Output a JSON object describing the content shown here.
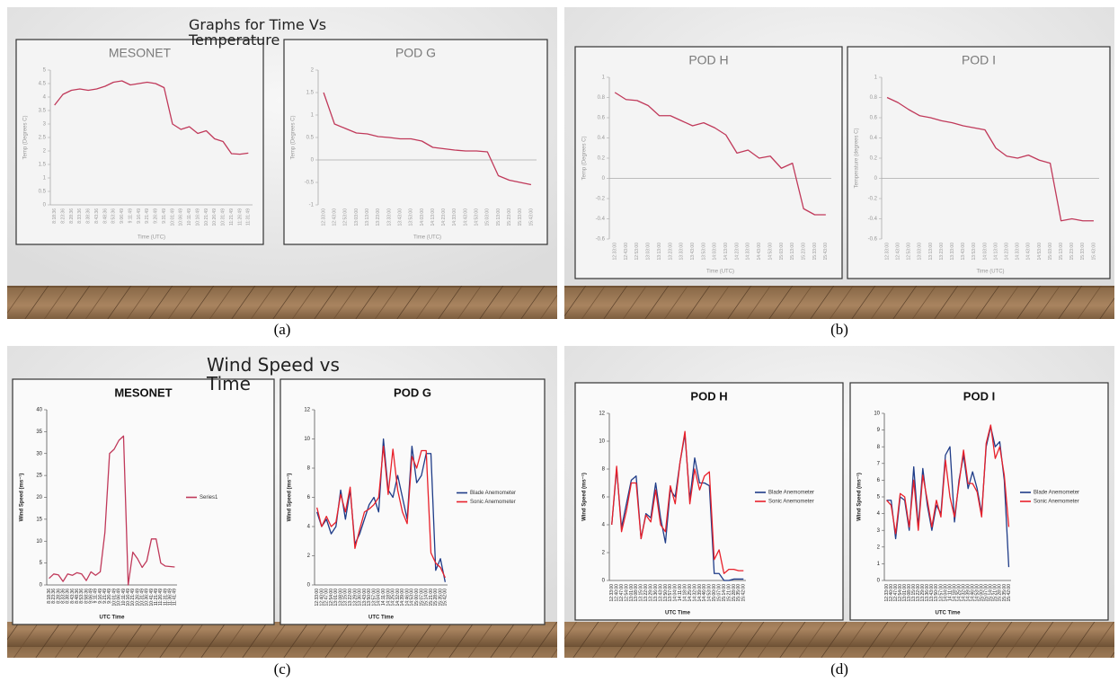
{
  "slides": [
    {
      "title": "Graphs for Time Vs Temperature",
      "caption": "(a)"
    },
    {
      "caption": "(b)"
    },
    {
      "title": "Wind Speed vs Time",
      "caption": "(c)"
    },
    {
      "caption": "(d)"
    }
  ],
  "chart_data": [
    {
      "type": "line",
      "title": "MESONET",
      "xlabel": "Time (UTC)",
      "ylabel": "Temp (Degrees C)",
      "categories": [
        "8:18:36",
        "8:23:36",
        "8:28:36",
        "8:33:36",
        "8:38:36",
        "8:43:36",
        "8:48:36",
        "8:53:36",
        "9:06:49",
        "9:11:49",
        "9:16:49",
        "9:21:49",
        "9:26:49",
        "9:31:49",
        "10:01:49",
        "10:06:49",
        "10:11:49",
        "10:16:49",
        "10:21:49",
        "10:26:49",
        "10:31:49",
        "11:21:49",
        "11:26:49",
        "11:31:49"
      ],
      "series": [
        {
          "color": "#c0395a",
          "values": [
            3.7,
            4.1,
            4.25,
            4.3,
            4.25,
            4.3,
            4.4,
            4.55,
            4.6,
            4.45,
            4.5,
            4.55,
            4.5,
            4.35,
            3.0,
            2.8,
            2.9,
            2.65,
            2.75,
            2.45,
            2.35,
            1.9,
            1.88,
            1.92
          ]
        }
      ],
      "ylim": [
        0,
        5
      ],
      "yticks": [
        0,
        0.5,
        1,
        1.5,
        2,
        2.5,
        3,
        3.5,
        4,
        4.5,
        5
      ]
    },
    {
      "type": "line",
      "title": "POD G",
      "xlabel": "Time (UTC)",
      "ylabel": "Temp (Degrees C)",
      "categories": [
        "12:33:00",
        "12:43:00",
        "12:53:00",
        "13:03:00",
        "13:13:00",
        "13:23:00",
        "13:33:00",
        "13:43:00",
        "13:53:00",
        "14:03:00",
        "14:13:00",
        "14:23:00",
        "14:33:00",
        "14:43:00",
        "14:53:00",
        "15:03:00",
        "15:13:00",
        "15:23:00",
        "15:33:00",
        "15:43:00"
      ],
      "series": [
        {
          "color": "#c0395a",
          "values": [
            1.5,
            0.8,
            0.7,
            0.6,
            0.58,
            0.52,
            0.5,
            0.47,
            0.47,
            0.42,
            0.28,
            0.25,
            0.22,
            0.2,
            0.2,
            0.18,
            -0.35,
            -0.45,
            -0.5,
            -0.55
          ]
        }
      ],
      "ylim": [
        -1,
        2
      ],
      "yticks": [
        -1,
        -0.5,
        0,
        0.5,
        1,
        1.5,
        2
      ]
    },
    {
      "type": "line",
      "title": "POD H",
      "xlabel": "Time (UTC)",
      "ylabel": "Temp (Degrees C)",
      "categories": [
        "12:33:00",
        "12:43:00",
        "12:53:00",
        "13:03:00",
        "13:13:00",
        "13:23:00",
        "13:33:00",
        "13:43:00",
        "13:53:00",
        "14:03:00",
        "14:13:00",
        "14:23:00",
        "14:33:00",
        "14:43:00",
        "14:53:00",
        "15:03:00",
        "15:13:00",
        "15:23:00",
        "15:33:00",
        "15:43:00"
      ],
      "series": [
        {
          "color": "#c0395a",
          "values": [
            0.85,
            0.78,
            0.77,
            0.72,
            0.62,
            0.62,
            0.57,
            0.52,
            0.55,
            0.5,
            0.43,
            0.25,
            0.28,
            0.2,
            0.22,
            0.1,
            0.15,
            -0.3,
            -0.36,
            -0.36
          ]
        }
      ],
      "ylim": [
        -0.6,
        1
      ],
      "yticks": [
        -0.6,
        -0.4,
        -0.2,
        0,
        0.2,
        0.4,
        0.6,
        0.8,
        1
      ]
    },
    {
      "type": "line",
      "title": "POD I",
      "xlabel": "Time (UTC)",
      "ylabel": "Temperature (degrees C)",
      "categories": [
        "12:33:00",
        "12:43:00",
        "12:53:00",
        "13:03:00",
        "13:13:00",
        "13:23:00",
        "13:33:00",
        "13:43:00",
        "13:53:00",
        "14:03:00",
        "14:13:00",
        "14:23:00",
        "14:33:00",
        "14:43:00",
        "14:53:00",
        "15:03:00",
        "15:13:00",
        "15:23:00",
        "15:33:00",
        "15:43:00"
      ],
      "series": [
        {
          "color": "#c0395a",
          "values": [
            0.8,
            0.75,
            0.68,
            0.62,
            0.6,
            0.57,
            0.55,
            0.52,
            0.5,
            0.48,
            0.3,
            0.22,
            0.2,
            0.23,
            0.18,
            0.15,
            -0.42,
            -0.4,
            -0.42,
            -0.42
          ]
        }
      ],
      "ylim": [
        -0.6,
        1
      ],
      "yticks": [
        -0.6,
        -0.4,
        -0.2,
        0,
        0.2,
        0.4,
        0.6,
        0.8,
        1
      ]
    },
    {
      "type": "line",
      "title": "MESONET",
      "xlabel": "UTC Time",
      "ylabel": "Wind Speed (ms⁻¹)",
      "categories": [
        "8:18:36",
        "8:23:36",
        "8:28:36",
        "8:33:36",
        "8:38:36",
        "8:43:36",
        "8:48:36",
        "8:53:36",
        "8:58:36",
        "9:06:49",
        "9:11:49",
        "9:16:49",
        "9:21:49",
        "9:26:49",
        "10:01:49",
        "10:06:49",
        "10:11:49",
        "10:16:49",
        "10:21:49",
        "10:26:49",
        "10:31:49",
        "10:36:49",
        "10:41:49",
        "11:21:49",
        "11:26:49",
        "11:31:49",
        "11:36:49",
        "11:41:49"
      ],
      "series": [
        {
          "name": "Series1",
          "color": "#c0395a",
          "values": [
            1.5,
            2.5,
            2.3,
            0.8,
            2.5,
            2.2,
            2.8,
            2.5,
            1.0,
            3.0,
            2.2,
            3.0,
            12,
            30,
            31,
            33,
            34,
            0,
            7.5,
            6,
            4,
            5.5,
            10.5,
            10.5,
            5,
            4.3,
            4.2,
            4.1
          ]
        }
      ],
      "ylim": [
        0,
        40
      ],
      "yticks": [
        0,
        5,
        10,
        15,
        20,
        25,
        30,
        35,
        40
      ],
      "legend": "right"
    },
    {
      "type": "line",
      "title": "POD G",
      "xlabel": "UTC Time",
      "ylabel": "Wind Speed (ms⁻¹)",
      "categories": [
        "12:33:00",
        "12:40:00",
        "12:47:00",
        "12:54:00",
        "13:01:00",
        "13:08:00",
        "13:15:00",
        "13:22:00",
        "13:29:00",
        "13:36:00",
        "13:43:00",
        "13:50:00",
        "13:57:00",
        "14:04:00",
        "14:11:00",
        "14:18:00",
        "14:25:00",
        "14:32:00",
        "14:39:00",
        "14:46:00",
        "14:53:00",
        "15:00:00",
        "15:07:00",
        "15:14:00",
        "15:21:00",
        "15:28:00",
        "15:35:00",
        "15:42:00"
      ],
      "series": [
        {
          "name": "Blade Anemometer",
          "color": "#1f3c88",
          "values": [
            5,
            4,
            4.5,
            3.5,
            4,
            6.5,
            4.5,
            6.5,
            2.8,
            3.5,
            4.5,
            5.5,
            6,
            5,
            10,
            6.5,
            6,
            7.5,
            6,
            4.5,
            9.5,
            7,
            7.5,
            9,
            9,
            1,
            1.8,
            0.2
          ]
        },
        {
          "name": "Sonic Anemometer",
          "color": "#e8202a",
          "values": [
            5.3,
            4,
            4.7,
            4,
            4.3,
            6.2,
            5,
            6.7,
            2.5,
            3.8,
            5,
            5.2,
            5.5,
            6,
            9.5,
            6.2,
            9.3,
            6.5,
            5,
            4.2,
            8.8,
            8,
            9.2,
            9.2,
            2.2,
            1.5,
            1.2,
            0.5
          ]
        }
      ],
      "ylim": [
        0,
        12
      ],
      "yticks": [
        0,
        2,
        4,
        6,
        8,
        10,
        12
      ],
      "legend": "right"
    },
    {
      "type": "line",
      "title": "POD H",
      "xlabel": "UTC Time",
      "ylabel": "Wind Speed (ms⁻¹)",
      "categories": [
        "12:33:00",
        "12:40:00",
        "12:47:00",
        "12:54:00",
        "13:01:00",
        "13:08:00",
        "13:15:00",
        "13:22:00",
        "13:29:00",
        "13:36:00",
        "13:43:00",
        "13:50:00",
        "13:57:00",
        "14:04:00",
        "14:11:00",
        "14:18:00",
        "14:25:00",
        "14:32:00",
        "14:39:00",
        "14:46:00",
        "14:53:00",
        "15:00:00",
        "15:07:00",
        "15:14:00",
        "15:21:00",
        "15:28:00",
        "15:35:00",
        "15:42:00"
      ],
      "series": [
        {
          "name": "Blade Anemometer",
          "color": "#1f3c88",
          "values": [
            4,
            8,
            3.8,
            5.5,
            7.2,
            7.5,
            3,
            4.8,
            4.5,
            7,
            4.5,
            2.7,
            6.5,
            6,
            8.5,
            10.5,
            5.8,
            8.8,
            7,
            7,
            6.8,
            0.5,
            0.5,
            0,
            0,
            0.1,
            0.1,
            0.1
          ]
        },
        {
          "name": "Sonic Anemometer",
          "color": "#e8202a",
          "values": [
            4,
            8.2,
            3.5,
            5,
            7,
            7,
            3,
            4.7,
            4.2,
            6.5,
            4,
            3.5,
            6.8,
            5.5,
            8.5,
            10.7,
            5.5,
            8,
            6.5,
            7.5,
            7.8,
            1.5,
            2.2,
            0.5,
            0.8,
            0.8,
            0.7,
            0.7
          ]
        }
      ],
      "ylim": [
        0,
        12
      ],
      "yticks": [
        0,
        2,
        4,
        6,
        8,
        10,
        12
      ],
      "legend": "right"
    },
    {
      "type": "line",
      "title": "POD I",
      "xlabel": "UTC Time",
      "ylabel": "Wind Speed (ms⁻¹)",
      "categories": [
        "12:33:00",
        "12:40:00",
        "12:47:00",
        "12:54:00",
        "13:01:00",
        "13:08:00",
        "13:15:00",
        "13:22:00",
        "13:29:00",
        "13:36:00",
        "13:43:00",
        "13:50:00",
        "13:57:00",
        "14:04:00",
        "14:11:00",
        "14:18:00",
        "14:25:00",
        "14:32:00",
        "14:39:00",
        "14:46:00",
        "14:53:00",
        "15:00:00",
        "15:07:00",
        "15:14:00",
        "15:21:00",
        "15:28:00",
        "15:35:00",
        "15:42:00"
      ],
      "series": [
        {
          "name": "Blade Anemometer",
          "color": "#1f3c88",
          "values": [
            4.8,
            4.8,
            2.5,
            5,
            4.8,
            3,
            6.8,
            3.2,
            6.7,
            4.5,
            3,
            4.5,
            4,
            7.5,
            8,
            3.5,
            6,
            7.5,
            5.5,
            6.5,
            5.5,
            4,
            8,
            9.2,
            8,
            8.3,
            6,
            0.8
          ]
        },
        {
          "name": "Sonic Anemometer",
          "color": "#e8202a",
          "values": [
            4.8,
            4.5,
            2.8,
            5.2,
            5,
            3.2,
            6,
            3,
            6.3,
            4.8,
            3.2,
            4.8,
            3.8,
            7.2,
            5,
            3.8,
            5.8,
            7.8,
            5.8,
            5.8,
            5.3,
            3.8,
            8.2,
            9.3,
            7.3,
            8,
            6.3,
            3.2
          ]
        }
      ],
      "ylim": [
        0,
        10
      ],
      "yticks": [
        0,
        1,
        2,
        3,
        4,
        5,
        6,
        7,
        8,
        9,
        10
      ],
      "legend": "right"
    }
  ]
}
